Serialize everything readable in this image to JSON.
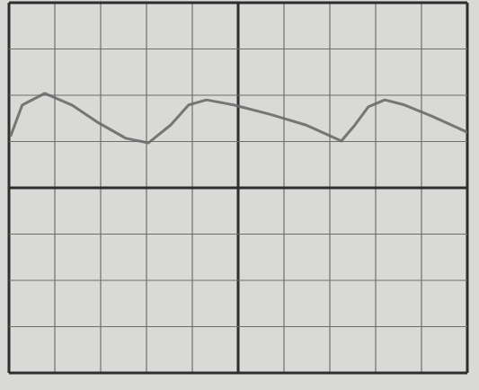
{
  "chart_data": {
    "type": "line",
    "x": [
      0.04,
      0.29,
      0.78,
      1.37,
      1.96,
      2.55,
      3.04,
      3.53,
      3.92,
      4.31,
      4.9,
      5.69,
      6.47,
      7.25,
      7.55,
      7.84,
      8.2,
      8.63,
      9.22,
      10.0
    ],
    "values": [
      1.13,
      1.79,
      2.04,
      1.79,
      1.4,
      1.07,
      0.97,
      1.36,
      1.79,
      1.9,
      1.79,
      1.59,
      1.36,
      1.01,
      1.36,
      1.75,
      1.9,
      1.79,
      1.55,
      1.2
    ],
    "color": "#6a6a6a",
    "xlim": [
      0,
      10
    ],
    "ylim": [
      -4,
      4
    ],
    "xticks": [
      0,
      1,
      2,
      3,
      4,
      5,
      6,
      7,
      8,
      9,
      10
    ],
    "yticks": [
      -4,
      -3,
      -2,
      -1,
      0,
      1,
      2,
      3,
      4
    ],
    "grid": true,
    "tick_labels": false
  }
}
